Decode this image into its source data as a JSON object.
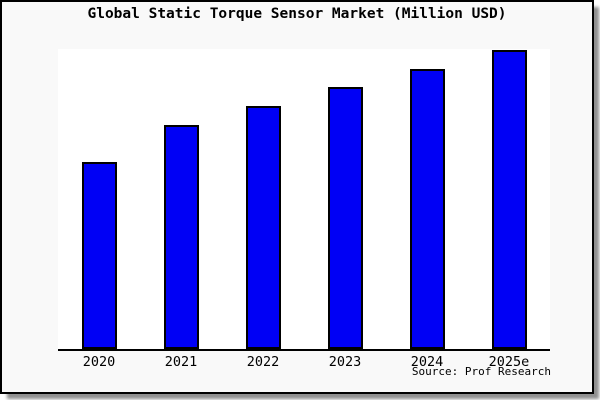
{
  "window": {
    "title": "Global Static Torque Sensor Market (Million USD)"
  },
  "chart_data": {
    "type": "bar",
    "title": "Global Static Torque Sensor Market (Million USD)",
    "categories": [
      "2020",
      "2021",
      "2022",
      "2023",
      "2024",
      "2025e"
    ],
    "values": [
      187,
      224,
      243,
      262,
      280,
      299
    ],
    "xlabel": "",
    "ylabel": "",
    "ylim": [
      0,
      300
    ],
    "grid": false,
    "legend": false,
    "y_axis_visible": false,
    "x_axis_visible": true,
    "value_scale_note": "no y-axis tick labels shown; values are relative units estimated from bar heights"
  },
  "source_credit": "Source: Prof Research",
  "colors": {
    "figure_background": "#f9f9f9",
    "plot_background": "#ffffff",
    "bar_fill": "#0000f5",
    "bar_edge": "#000000",
    "axis_line": "#000000",
    "figure_border": "#000000",
    "shadow": "#8f8f8f",
    "text": "#000000"
  }
}
